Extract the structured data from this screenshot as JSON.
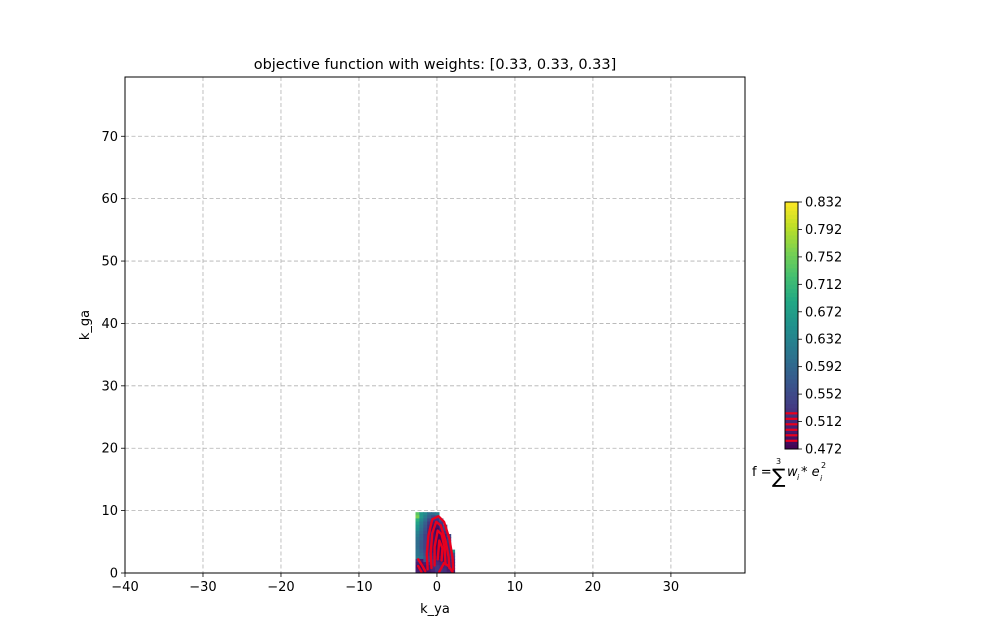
{
  "chart_data": {
    "type": "heatmap",
    "title": "objective function with weights: [0.33, 0.33, 0.33]",
    "xlabel": "k_ya",
    "ylabel": "k_ga",
    "xlim": [
      -40,
      39.5
    ],
    "ylim": [
      0,
      79.5
    ],
    "xticks": [
      -40,
      -30,
      -20,
      -10,
      0,
      10,
      20,
      30
    ],
    "xtick_labels": [
      "−40",
      "−30",
      "−20",
      "−10",
      "0",
      "10",
      "20",
      "30"
    ],
    "yticks": [
      0,
      10,
      20,
      30,
      40,
      50,
      60,
      70
    ],
    "ytick_labels": [
      "0",
      "10",
      "20",
      "30",
      "40",
      "50",
      "60",
      "70"
    ],
    "grid": true,
    "colormap": "viridis",
    "colorbar": {
      "min": 0.472,
      "max": 0.832,
      "ticks": [
        0.472,
        0.512,
        0.552,
        0.592,
        0.632,
        0.672,
        0.712,
        0.752,
        0.792,
        0.832
      ],
      "tick_labels": [
        "0.472",
        "0.512",
        "0.552",
        "0.592",
        "0.632",
        "0.672",
        "0.712",
        "0.752",
        "0.792",
        "0.832"
      ],
      "red_band_values": [
        0.484,
        0.492,
        0.5,
        0.508,
        0.516,
        0.524
      ]
    },
    "formula": {
      "prefix": "f = ",
      "sum": "∑",
      "sup": "3",
      "body": "w",
      "sub1": "i",
      "mul": " * e",
      "sub2": "i",
      "sup2": "2"
    },
    "contour_color": "#e8001e",
    "region_cells": [
      {
        "x": -2.5,
        "y": 9.5,
        "v": 0.74
      },
      {
        "x": -2,
        "y": 9.5,
        "v": 0.66
      },
      {
        "x": -1.5,
        "y": 9.5,
        "v": 0.64
      },
      {
        "x": -1,
        "y": 9.5,
        "v": 0.6
      },
      {
        "x": -0.5,
        "y": 9.5,
        "v": 0.6
      },
      {
        "x": 0,
        "y": 9.5,
        "v": 0.62
      },
      {
        "x": -2.5,
        "y": 9,
        "v": 0.76
      },
      {
        "x": -2,
        "y": 9,
        "v": 0.66
      },
      {
        "x": -1.5,
        "y": 9,
        "v": 0.62
      },
      {
        "x": -1,
        "y": 9,
        "v": 0.58
      },
      {
        "x": -0.5,
        "y": 9,
        "v": 0.55
      },
      {
        "x": 0,
        "y": 9,
        "v": 0.56
      },
      {
        "x": -2.5,
        "y": 8.5,
        "v": 0.7
      },
      {
        "x": -2,
        "y": 8.5,
        "v": 0.64
      },
      {
        "x": -1.5,
        "y": 8.5,
        "v": 0.6
      },
      {
        "x": -1,
        "y": 8.5,
        "v": 0.55
      },
      {
        "x": -0.5,
        "y": 8.5,
        "v": 0.52
      },
      {
        "x": 0,
        "y": 8.5,
        "v": 0.52
      },
      {
        "x": 0.5,
        "y": 8.5,
        "v": 0.56
      },
      {
        "x": -2.5,
        "y": 8,
        "v": 0.68
      },
      {
        "x": -2,
        "y": 8,
        "v": 0.62
      },
      {
        "x": -1.5,
        "y": 8,
        "v": 0.58
      },
      {
        "x": -1,
        "y": 8,
        "v": 0.53
      },
      {
        "x": -0.5,
        "y": 8,
        "v": 0.5
      },
      {
        "x": 0,
        "y": 8,
        "v": 0.5
      },
      {
        "x": 0.5,
        "y": 8,
        "v": 0.53
      },
      {
        "x": -2.5,
        "y": 7.5,
        "v": 0.66
      },
      {
        "x": -2,
        "y": 7.5,
        "v": 0.61
      },
      {
        "x": -1.5,
        "y": 7.5,
        "v": 0.57
      },
      {
        "x": -1,
        "y": 7.5,
        "v": 0.52
      },
      {
        "x": -0.5,
        "y": 7.5,
        "v": 0.49
      },
      {
        "x": 0,
        "y": 7.5,
        "v": 0.49
      },
      {
        "x": 0.5,
        "y": 7.5,
        "v": 0.51
      },
      {
        "x": 1,
        "y": 7.5,
        "v": 0.56
      },
      {
        "x": -2.5,
        "y": 7,
        "v": 0.65
      },
      {
        "x": -2,
        "y": 7,
        "v": 0.6
      },
      {
        "x": -1.5,
        "y": 7,
        "v": 0.56
      },
      {
        "x": -1,
        "y": 7,
        "v": 0.51
      },
      {
        "x": -0.5,
        "y": 7,
        "v": 0.49
      },
      {
        "x": 0,
        "y": 7,
        "v": 0.48
      },
      {
        "x": 0.5,
        "y": 7,
        "v": 0.5
      },
      {
        "x": 1,
        "y": 7,
        "v": 0.54
      },
      {
        "x": -2.5,
        "y": 6.5,
        "v": 0.63
      },
      {
        "x": -2,
        "y": 6.5,
        "v": 0.59
      },
      {
        "x": -1.5,
        "y": 6.5,
        "v": 0.55
      },
      {
        "x": -1,
        "y": 6.5,
        "v": 0.51
      },
      {
        "x": -0.5,
        "y": 6.5,
        "v": 0.49
      },
      {
        "x": 0,
        "y": 6.5,
        "v": 0.48
      },
      {
        "x": 0.5,
        "y": 6.5,
        "v": 0.49
      },
      {
        "x": 1,
        "y": 6.5,
        "v": 0.52
      },
      {
        "x": -2.5,
        "y": 6,
        "v": 0.62
      },
      {
        "x": -2,
        "y": 6,
        "v": 0.58
      },
      {
        "x": -1.5,
        "y": 6,
        "v": 0.54
      },
      {
        "x": -1,
        "y": 6,
        "v": 0.51
      },
      {
        "x": -0.5,
        "y": 6,
        "v": 0.49
      },
      {
        "x": 0,
        "y": 6,
        "v": 0.48
      },
      {
        "x": 0.5,
        "y": 6,
        "v": 0.48
      },
      {
        "x": 1,
        "y": 6,
        "v": 0.5
      },
      {
        "x": 1.5,
        "y": 6,
        "v": 0.55
      },
      {
        "x": -2.5,
        "y": 5.5,
        "v": 0.61
      },
      {
        "x": -2,
        "y": 5.5,
        "v": 0.58
      },
      {
        "x": -1.5,
        "y": 5.5,
        "v": 0.54
      },
      {
        "x": -1,
        "y": 5.5,
        "v": 0.51
      },
      {
        "x": -0.5,
        "y": 5.5,
        "v": 0.49
      },
      {
        "x": 0,
        "y": 5.5,
        "v": 0.48
      },
      {
        "x": 0.5,
        "y": 5.5,
        "v": 0.48
      },
      {
        "x": 1,
        "y": 5.5,
        "v": 0.49
      },
      {
        "x": 1.5,
        "y": 5.5,
        "v": 0.53
      },
      {
        "x": -2.5,
        "y": 5,
        "v": 0.6
      },
      {
        "x": -2,
        "y": 5,
        "v": 0.57
      },
      {
        "x": -1.5,
        "y": 5,
        "v": 0.54
      },
      {
        "x": -1,
        "y": 5,
        "v": 0.51
      },
      {
        "x": -0.5,
        "y": 5,
        "v": 0.49
      },
      {
        "x": 0,
        "y": 5,
        "v": 0.48
      },
      {
        "x": 0.5,
        "y": 5,
        "v": 0.48
      },
      {
        "x": 1,
        "y": 5,
        "v": 0.49
      },
      {
        "x": 1.5,
        "y": 5,
        "v": 0.52
      },
      {
        "x": -2.5,
        "y": 4.5,
        "v": 0.6
      },
      {
        "x": -2,
        "y": 4.5,
        "v": 0.57
      },
      {
        "x": -1.5,
        "y": 4.5,
        "v": 0.54
      },
      {
        "x": -1,
        "y": 4.5,
        "v": 0.51
      },
      {
        "x": -0.5,
        "y": 4.5,
        "v": 0.49
      },
      {
        "x": 0,
        "y": 4.5,
        "v": 0.48
      },
      {
        "x": 0.5,
        "y": 4.5,
        "v": 0.48
      },
      {
        "x": 1,
        "y": 4.5,
        "v": 0.49
      },
      {
        "x": 1.5,
        "y": 4.5,
        "v": 0.51
      },
      {
        "x": -2.5,
        "y": 4,
        "v": 0.6
      },
      {
        "x": -2,
        "y": 4,
        "v": 0.57
      },
      {
        "x": -1.5,
        "y": 4,
        "v": 0.54
      },
      {
        "x": -1,
        "y": 4,
        "v": 0.51
      },
      {
        "x": -0.5,
        "y": 4,
        "v": 0.49
      },
      {
        "x": 0,
        "y": 4,
        "v": 0.48
      },
      {
        "x": 0.5,
        "y": 4,
        "v": 0.48
      },
      {
        "x": 1,
        "y": 4,
        "v": 0.49
      },
      {
        "x": 1.5,
        "y": 4,
        "v": 0.51
      },
      {
        "x": -2.5,
        "y": 3.5,
        "v": 0.61
      },
      {
        "x": -2,
        "y": 3.5,
        "v": 0.58
      },
      {
        "x": -1.5,
        "y": 3.5,
        "v": 0.55
      },
      {
        "x": -1,
        "y": 3.5,
        "v": 0.52
      },
      {
        "x": -0.5,
        "y": 3.5,
        "v": 0.5
      },
      {
        "x": 0,
        "y": 3.5,
        "v": 0.49
      },
      {
        "x": 0.5,
        "y": 3.5,
        "v": 0.48
      },
      {
        "x": 1,
        "y": 3.5,
        "v": 0.49
      },
      {
        "x": 1.5,
        "y": 3.5,
        "v": 0.51
      },
      {
        "x": 2,
        "y": 3.5,
        "v": 0.66
      },
      {
        "x": -2.5,
        "y": 3,
        "v": 0.61
      },
      {
        "x": -2,
        "y": 3,
        "v": 0.59
      },
      {
        "x": -1.5,
        "y": 3,
        "v": 0.56
      },
      {
        "x": -1,
        "y": 3,
        "v": 0.53
      },
      {
        "x": -0.5,
        "y": 3,
        "v": 0.51
      },
      {
        "x": 0,
        "y": 3,
        "v": 0.49
      },
      {
        "x": 0.5,
        "y": 3,
        "v": 0.48
      },
      {
        "x": 1,
        "y": 3,
        "v": 0.49
      },
      {
        "x": 1.5,
        "y": 3,
        "v": 0.51
      },
      {
        "x": 2,
        "y": 3,
        "v": 0.56
      },
      {
        "x": -2.5,
        "y": 2.5,
        "v": 0.62
      },
      {
        "x": -2,
        "y": 2.5,
        "v": 0.6
      },
      {
        "x": -1.5,
        "y": 2.5,
        "v": 0.57
      },
      {
        "x": -1,
        "y": 2.5,
        "v": 0.54
      },
      {
        "x": -0.5,
        "y": 2.5,
        "v": 0.52
      },
      {
        "x": 0,
        "y": 2.5,
        "v": 0.5
      },
      {
        "x": 0.5,
        "y": 2.5,
        "v": 0.49
      },
      {
        "x": 1,
        "y": 2.5,
        "v": 0.49
      },
      {
        "x": 1.5,
        "y": 2.5,
        "v": 0.5
      },
      {
        "x": 2,
        "y": 2.5,
        "v": 0.54
      },
      {
        "x": -2.5,
        "y": 2,
        "v": 0.52
      },
      {
        "x": -2,
        "y": 2,
        "v": 0.5
      },
      {
        "x": -1.5,
        "y": 2,
        "v": 0.56
      },
      {
        "x": -1,
        "y": 2,
        "v": 0.55
      },
      {
        "x": -0.5,
        "y": 2,
        "v": 0.53
      },
      {
        "x": 0,
        "y": 2,
        "v": 0.51
      },
      {
        "x": 0.5,
        "y": 2,
        "v": 0.5
      },
      {
        "x": 1,
        "y": 2,
        "v": 0.49
      },
      {
        "x": 1.5,
        "y": 2,
        "v": 0.5
      },
      {
        "x": 2,
        "y": 2,
        "v": 0.52
      },
      {
        "x": -2.5,
        "y": 1.5,
        "v": 0.5
      },
      {
        "x": -2,
        "y": 1.5,
        "v": 0.49
      },
      {
        "x": -1.5,
        "y": 1.5,
        "v": 0.5
      },
      {
        "x": -1,
        "y": 1.5,
        "v": 0.52
      },
      {
        "x": -0.5,
        "y": 1.5,
        "v": 0.53
      },
      {
        "x": 0,
        "y": 1.5,
        "v": 0.52
      },
      {
        "x": 0.5,
        "y": 1.5,
        "v": 0.51
      },
      {
        "x": 1,
        "y": 1.5,
        "v": 0.5
      },
      {
        "x": 1.5,
        "y": 1.5,
        "v": 0.5
      },
      {
        "x": 2,
        "y": 1.5,
        "v": 0.51
      },
      {
        "x": -2.5,
        "y": 1,
        "v": 0.49
      },
      {
        "x": -2,
        "y": 1,
        "v": 0.48
      },
      {
        "x": -1.5,
        "y": 1,
        "v": 0.49
      },
      {
        "x": -1,
        "y": 1,
        "v": 0.5
      },
      {
        "x": -0.5,
        "y": 1,
        "v": 0.52
      },
      {
        "x": 0,
        "y": 1,
        "v": 0.53
      },
      {
        "x": 0.5,
        "y": 1,
        "v": 0.52
      },
      {
        "x": 1,
        "y": 1,
        "v": 0.51
      },
      {
        "x": 1.5,
        "y": 1,
        "v": 0.5
      },
      {
        "x": 2,
        "y": 1,
        "v": 0.51
      },
      {
        "x": -2.5,
        "y": 0.5,
        "v": 0.5
      },
      {
        "x": -2,
        "y": 0.5,
        "v": 0.49
      },
      {
        "x": -1.5,
        "y": 0.5,
        "v": 0.49
      },
      {
        "x": -1,
        "y": 0.5,
        "v": 0.5
      },
      {
        "x": -0.5,
        "y": 0.5,
        "v": 0.51
      },
      {
        "x": 0,
        "y": 0.5,
        "v": 0.53
      },
      {
        "x": 0.5,
        "y": 0.5,
        "v": 0.53
      },
      {
        "x": 1,
        "y": 0.5,
        "v": 0.52
      },
      {
        "x": 1.5,
        "y": 0.5,
        "v": 0.5
      },
      {
        "x": 2,
        "y": 0.5,
        "v": 0.5
      },
      {
        "x": -2.5,
        "y": 0,
        "v": 0.51
      },
      {
        "x": -2,
        "y": 0,
        "v": 0.5
      },
      {
        "x": -1.5,
        "y": 0,
        "v": 0.49
      },
      {
        "x": -1,
        "y": 0,
        "v": 0.49
      },
      {
        "x": -0.5,
        "y": 0,
        "v": 0.5
      },
      {
        "x": 0,
        "y": 0,
        "v": 0.52
      },
      {
        "x": 0.5,
        "y": 0,
        "v": 0.53
      },
      {
        "x": 1,
        "y": 0,
        "v": 0.52
      },
      {
        "x": 1.5,
        "y": 0,
        "v": 0.51
      },
      {
        "x": 2,
        "y": 0,
        "v": 0.5
      }
    ]
  }
}
